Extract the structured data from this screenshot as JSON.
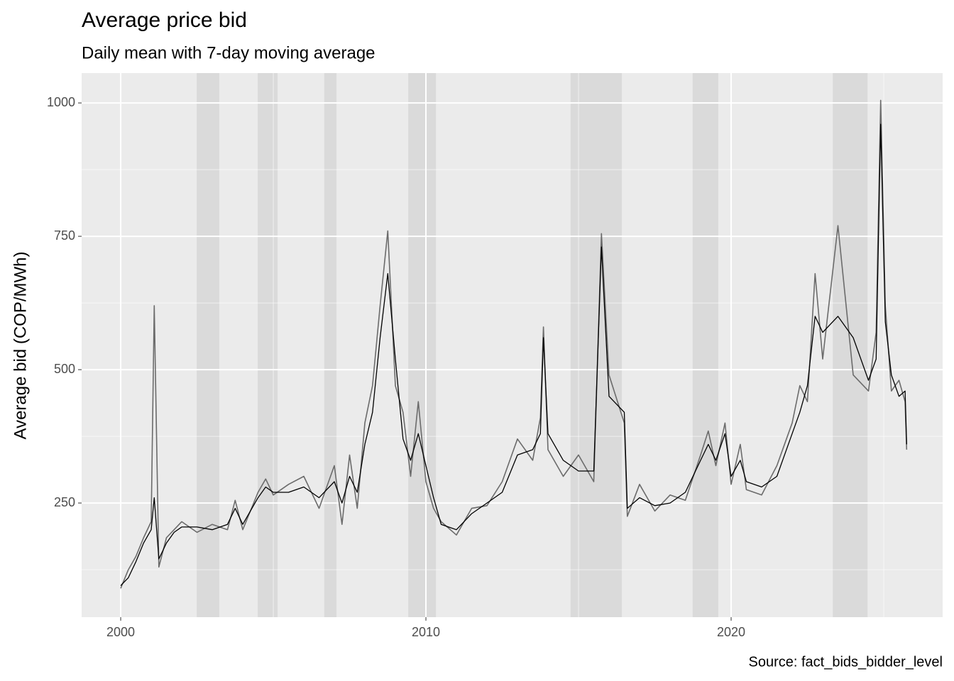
{
  "chart_data": {
    "type": "line",
    "title": "Average price bid",
    "subtitle": "Daily mean with 7-day moving average",
    "y_label": "Average bid (COP/MWh)",
    "caption": "Source: fact_bids_bidder_level",
    "xlim": [
      1998.72,
      2026.93
    ],
    "xticks": [
      2000,
      2010,
      2020
    ],
    "xminor": [
      2005,
      2015,
      2025
    ],
    "ylim": [
      36,
      1056
    ],
    "yticks": [
      250,
      500,
      750,
      1000
    ],
    "yminor": [
      125,
      375,
      625,
      875
    ],
    "grid": true,
    "shaded_periods": [
      [
        2002.49,
        2003.23
      ],
      [
        2004.49,
        2005.14
      ],
      [
        2006.67,
        2007.07
      ],
      [
        2009.42,
        2010.33
      ],
      [
        2014.74,
        2016.42
      ],
      [
        2018.74,
        2019.58
      ],
      [
        2023.33,
        2024.47
      ]
    ],
    "shade_color": "#dadada",
    "x": [
      2000.0,
      2000.25,
      2000.5,
      2000.75,
      2001.0,
      2001.1,
      2001.25,
      2001.5,
      2001.75,
      2002.0,
      2002.5,
      2003.0,
      2003.5,
      2003.75,
      2004.0,
      2004.5,
      2004.75,
      2005.0,
      2005.5,
      2006.0,
      2006.5,
      2007.0,
      2007.25,
      2007.5,
      2007.75,
      2008.0,
      2008.25,
      2008.5,
      2008.75,
      2009.0,
      2009.25,
      2009.5,
      2009.75,
      2010.0,
      2010.25,
      2010.5,
      2011.0,
      2011.5,
      2012.0,
      2012.5,
      2013.0,
      2013.5,
      2013.75,
      2013.85,
      2014.0,
      2014.5,
      2015.0,
      2015.5,
      2015.75,
      2016.0,
      2016.5,
      2016.6,
      2017.0,
      2017.5,
      2018.0,
      2018.5,
      2019.0,
      2019.25,
      2019.5,
      2019.8,
      2020.0,
      2020.3,
      2020.5,
      2021.0,
      2021.5,
      2022.0,
      2022.25,
      2022.5,
      2022.75,
      2023.0,
      2023.5,
      2024.0,
      2024.5,
      2024.75,
      2024.9,
      2025.05,
      2025.25,
      2025.5,
      2025.7,
      2025.75
    ],
    "series": [
      {
        "name": "Daily mean",
        "color": "#6b6b6b",
        "values": [
          90,
          125,
          150,
          185,
          215,
          620,
          130,
          185,
          200,
          215,
          195,
          210,
          200,
          255,
          200,
          270,
          295,
          265,
          285,
          300,
          240,
          320,
          210,
          340,
          240,
          400,
          470,
          620,
          760,
          470,
          420,
          300,
          440,
          290,
          240,
          215,
          190,
          240,
          245,
          290,
          370,
          330,
          410,
          580,
          350,
          300,
          340,
          290,
          755,
          490,
          400,
          225,
          285,
          235,
          265,
          255,
          340,
          385,
          320,
          400,
          285,
          360,
          275,
          265,
          320,
          400,
          470,
          440,
          680,
          520,
          770,
          490,
          460,
          570,
          1005,
          620,
          460,
          480,
          440,
          350
        ]
      },
      {
        "name": "7-day moving average",
        "color": "#000000",
        "values": [
          95,
          110,
          140,
          175,
          200,
          260,
          145,
          175,
          195,
          205,
          205,
          200,
          210,
          240,
          210,
          260,
          280,
          270,
          270,
          280,
          260,
          290,
          250,
          300,
          270,
          360,
          420,
          560,
          680,
          520,
          370,
          330,
          380,
          320,
          260,
          210,
          200,
          230,
          250,
          270,
          340,
          350,
          380,
          560,
          380,
          330,
          310,
          310,
          730,
          450,
          420,
          240,
          260,
          245,
          250,
          270,
          330,
          360,
          330,
          380,
          300,
          330,
          290,
          280,
          300,
          380,
          420,
          470,
          600,
          570,
          600,
          560,
          480,
          520,
          960,
          590,
          490,
          450,
          460,
          360
        ]
      }
    ]
  }
}
